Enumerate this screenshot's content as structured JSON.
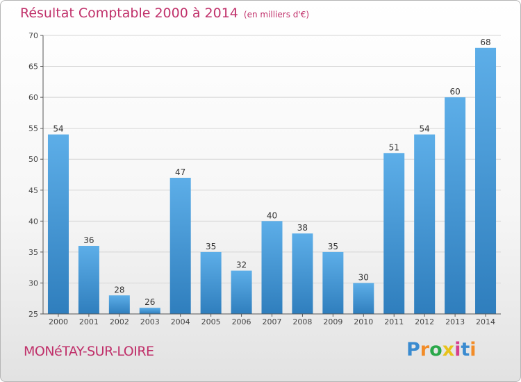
{
  "header": {
    "title": "Résultat Comptable 2000 à 2014",
    "subtitle": "(en milliers d'€)"
  },
  "footer": {
    "place": "MONéTAY-SUR-LOIRE",
    "brand_letters": [
      "P",
      "r",
      "o",
      "x",
      "i",
      "t",
      "i"
    ],
    "brand_colors": [
      "#3a8bd0",
      "#f28c28",
      "#2aa84a",
      "#e8c21a",
      "#d63f8c",
      "#3a8bd0",
      "#f28c28"
    ]
  },
  "colors": {
    "bar_light": "#5daee8",
    "bar_dark": "#2f7ebd",
    "accent": "#c0306a",
    "grid": "#d4d4d4",
    "axis": "#555555"
  },
  "chart_data": {
    "type": "bar",
    "title": "Résultat Comptable 2000 à 2014",
    "subtitle": "(en milliers d'€)",
    "xlabel": "",
    "ylabel": "",
    "categories": [
      "2000",
      "2001",
      "2002",
      "2003",
      "2004",
      "2005",
      "2006",
      "2007",
      "2008",
      "2009",
      "2010",
      "2011",
      "2012",
      "2013",
      "2014"
    ],
    "values": [
      54,
      36,
      28,
      26,
      47,
      35,
      32,
      40,
      38,
      35,
      30,
      51,
      54,
      60,
      68
    ],
    "ylim": [
      25,
      70
    ],
    "yticks": [
      25,
      30,
      35,
      40,
      45,
      50,
      55,
      60,
      65,
      70
    ],
    "grid": true,
    "data_labels": true
  }
}
